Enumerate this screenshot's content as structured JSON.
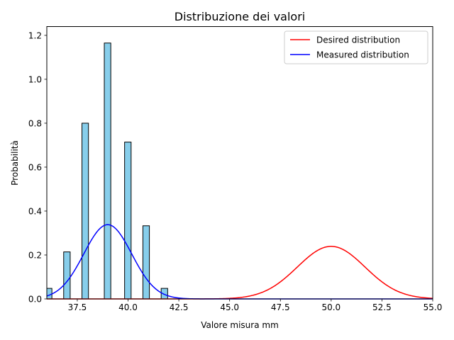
{
  "chart_data": {
    "type": "bar",
    "title": "Distribuzione dei valori",
    "xlabel": "Valore misura mm",
    "ylabel": "Probabilità",
    "xlim": [
      36.0,
      55.0
    ],
    "ylim": [
      0.0,
      1.24
    ],
    "xticks": [
      {
        "value": 37.5,
        "label": "37.5"
      },
      {
        "value": 40.0,
        "label": "40.0"
      },
      {
        "value": 42.5,
        "label": "42.5"
      },
      {
        "value": 45.0,
        "label": "45.0"
      },
      {
        "value": 47.5,
        "label": "47.5"
      },
      {
        "value": 50.0,
        "label": "50.0"
      },
      {
        "value": 52.5,
        "label": "52.5"
      },
      {
        "value": 55.0,
        "label": "55.0"
      }
    ],
    "yticks": [
      {
        "value": 0.0,
        "label": "0.0"
      },
      {
        "value": 0.2,
        "label": "0.2"
      },
      {
        "value": 0.4,
        "label": "0.4"
      },
      {
        "value": 0.6,
        "label": "0.6"
      },
      {
        "value": 0.8,
        "label": "0.8"
      },
      {
        "value": 1.0,
        "label": "1.0"
      },
      {
        "value": 1.2,
        "label": "1.2"
      }
    ],
    "grid": false,
    "legend_position": "top-right",
    "histogram": {
      "color": "#87CEEB",
      "edge_color": "#000000",
      "bins": [
        {
          "x0": 35.93,
          "x1": 36.25,
          "value": 0.048
        },
        {
          "x0": 36.83,
          "x1": 37.15,
          "value": 0.214
        },
        {
          "x0": 37.73,
          "x1": 38.05,
          "value": 0.8
        },
        {
          "x0": 38.83,
          "x1": 39.15,
          "value": 1.165
        },
        {
          "x0": 39.83,
          "x1": 40.15,
          "value": 0.714
        },
        {
          "x0": 40.73,
          "x1": 41.05,
          "value": 0.333
        },
        {
          "x0": 41.63,
          "x1": 41.95,
          "value": 0.048
        }
      ]
    },
    "series": [
      {
        "name": "Desired distribution",
        "type": "line",
        "color": "#FF0000",
        "mean": 50.0,
        "std": 1.667
      },
      {
        "name": "Measured distribution",
        "type": "line",
        "color": "#0000FF",
        "mean": 39.0,
        "std": 1.18
      }
    ]
  }
}
